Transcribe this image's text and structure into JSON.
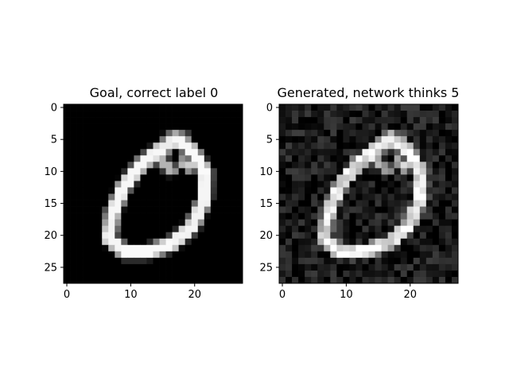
{
  "chart_data": [
    {
      "type": "heatmap",
      "title": "Goal, correct label 0",
      "colormap": "gray",
      "value_range": [
        0,
        1
      ],
      "grid": false,
      "xlim": [
        -0.5,
        27.5
      ],
      "ylim": [
        27.5,
        -0.5
      ],
      "xticks": [
        0,
        10,
        20
      ],
      "yticks": [
        0,
        5,
        10,
        15,
        20,
        25
      ],
      "background_value": 0,
      "strokes": [
        {
          "c0": 6.6,
          "r0": 20.5,
          "c1": 7.2,
          "r1": 16.4,
          "w": 1.3,
          "v": 0.95
        },
        {
          "c0": 7.2,
          "r0": 16.4,
          "c1": 9.0,
          "r1": 12.2,
          "w": 1.3,
          "v": 0.97
        },
        {
          "c0": 9.0,
          "r0": 12.2,
          "c1": 11.8,
          "r1": 8.8,
          "w": 1.3,
          "v": 0.97
        },
        {
          "c0": 11.8,
          "r0": 8.8,
          "c1": 14.6,
          "r1": 6.6,
          "w": 1.3,
          "v": 0.97
        },
        {
          "c0": 14.6,
          "r0": 6.6,
          "c1": 17.3,
          "r1": 4.9,
          "w": 1.4,
          "v": 0.92
        },
        {
          "c0": 17.3,
          "r0": 4.9,
          "c1": 19.6,
          "r1": 6.8,
          "w": 1.3,
          "v": 0.97
        },
        {
          "c0": 19.6,
          "r0": 6.8,
          "c1": 21.7,
          "r1": 10.2,
          "w": 1.3,
          "v": 0.98
        },
        {
          "c0": 21.7,
          "r0": 10.2,
          "c1": 21.6,
          "r1": 14.3,
          "w": 1.3,
          "v": 0.96
        },
        {
          "c0": 21.6,
          "r0": 14.3,
          "c1": 19.6,
          "r1": 18.6,
          "w": 1.3,
          "v": 0.95
        },
        {
          "c0": 19.6,
          "r0": 18.6,
          "c1": 16.4,
          "r1": 21.4,
          "w": 1.3,
          "v": 0.96
        },
        {
          "c0": 16.4,
          "r0": 21.4,
          "c1": 12.6,
          "r1": 22.6,
          "w": 1.3,
          "v": 0.98
        },
        {
          "c0": 12.6,
          "r0": 22.6,
          "c1": 9.0,
          "r1": 22.6,
          "w": 1.3,
          "v": 0.98
        },
        {
          "c0": 9.0,
          "r0": 22.6,
          "c1": 6.6,
          "r1": 20.5,
          "w": 1.3,
          "v": 0.96
        },
        {
          "c0": 14.6,
          "r0": 8.2,
          "c1": 16.4,
          "r1": 9.8,
          "w": 0.9,
          "v": 0.7
        },
        {
          "c0": 16.0,
          "r0": 4.6,
          "c1": 18.6,
          "r1": 4.8,
          "w": 0.7,
          "v": 0.55
        },
        {
          "c0": 18.3,
          "r0": 8.6,
          "c1": 19.3,
          "r1": 9.4,
          "w": 0.8,
          "v": 0.8
        }
      ]
    },
    {
      "type": "heatmap",
      "title": "Generated, network thinks 5",
      "colormap": "gray",
      "value_range": [
        0,
        1
      ],
      "grid": false,
      "xlim": [
        -0.5,
        27.5
      ],
      "ylim": [
        27.5,
        -0.5
      ],
      "xticks": [
        0,
        10,
        20
      ],
      "yticks": [
        0,
        5,
        10,
        15,
        20,
        25
      ],
      "background_value": 0.1,
      "noise_amplitude": 0.14,
      "strokes": [
        {
          "c0": 6.6,
          "r0": 20.5,
          "c1": 7.2,
          "r1": 16.4,
          "w": 1.3,
          "v": 0.88
        },
        {
          "c0": 7.2,
          "r0": 16.4,
          "c1": 9.0,
          "r1": 12.2,
          "w": 1.3,
          "v": 0.9
        },
        {
          "c0": 9.0,
          "r0": 12.2,
          "c1": 11.8,
          "r1": 8.8,
          "w": 1.3,
          "v": 0.9
        },
        {
          "c0": 11.8,
          "r0": 8.8,
          "c1": 14.6,
          "r1": 6.6,
          "w": 1.3,
          "v": 0.9
        },
        {
          "c0": 14.6,
          "r0": 6.6,
          "c1": 17.3,
          "r1": 4.9,
          "w": 1.4,
          "v": 0.86
        },
        {
          "c0": 17.3,
          "r0": 4.9,
          "c1": 19.6,
          "r1": 6.8,
          "w": 1.3,
          "v": 0.9
        },
        {
          "c0": 19.6,
          "r0": 6.8,
          "c1": 21.7,
          "r1": 10.2,
          "w": 1.3,
          "v": 0.92
        },
        {
          "c0": 21.7,
          "r0": 10.2,
          "c1": 21.6,
          "r1": 14.3,
          "w": 1.3,
          "v": 0.9
        },
        {
          "c0": 21.6,
          "r0": 14.3,
          "c1": 19.6,
          "r1": 18.6,
          "w": 1.3,
          "v": 0.88
        },
        {
          "c0": 19.6,
          "r0": 18.6,
          "c1": 16.4,
          "r1": 21.4,
          "w": 1.3,
          "v": 0.9
        },
        {
          "c0": 16.4,
          "r0": 21.4,
          "c1": 12.6,
          "r1": 22.6,
          "w": 1.3,
          "v": 0.92
        },
        {
          "c0": 12.6,
          "r0": 22.6,
          "c1": 9.0,
          "r1": 22.6,
          "w": 1.3,
          "v": 0.92
        },
        {
          "c0": 9.0,
          "r0": 22.6,
          "c1": 6.6,
          "r1": 20.5,
          "w": 1.3,
          "v": 0.9
        },
        {
          "c0": 14.6,
          "r0": 8.2,
          "c1": 16.4,
          "r1": 9.8,
          "w": 0.9,
          "v": 0.66
        },
        {
          "c0": 16.0,
          "r0": 4.6,
          "c1": 18.6,
          "r1": 4.8,
          "w": 0.7,
          "v": 0.52
        },
        {
          "c0": 18.3,
          "r0": 8.6,
          "c1": 19.3,
          "r1": 9.4,
          "w": 0.8,
          "v": 0.75
        }
      ]
    }
  ]
}
